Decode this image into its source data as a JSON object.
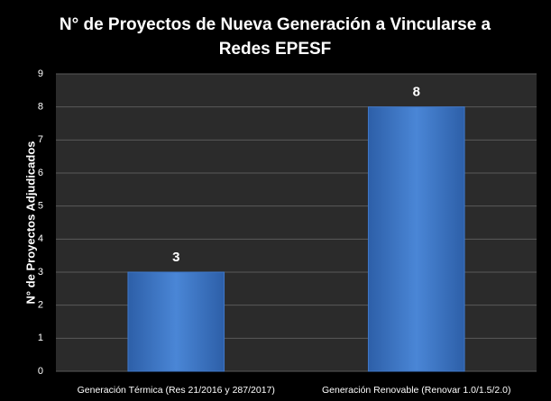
{
  "chart_data": {
    "type": "bar",
    "title": "N° de Proyectos de Nueva Generación a Vincularse a Redes EPESF",
    "y_label": "N° de Proyectos Adjudicados",
    "categories": [
      "Generación Térmica (Res 21/2016 y 287/2017)",
      "Generación Renovable (Renovar 1.0/1.5/2.0)"
    ],
    "values": [
      3,
      8
    ],
    "color": "#3f78c8",
    "ylim": [
      0,
      9
    ],
    "yticks": [
      0,
      1,
      2,
      3,
      4,
      5,
      6,
      7,
      8,
      9
    ],
    "grid": true
  }
}
